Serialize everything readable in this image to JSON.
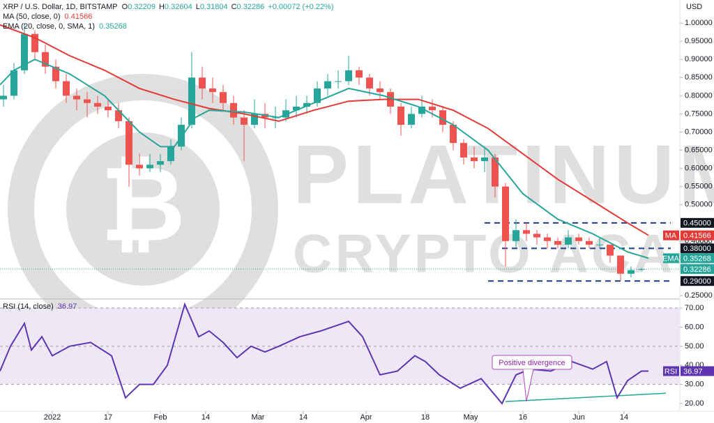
{
  "watermark": [
    "PLATINUM",
    "CRYPTO ACADEMY"
  ],
  "chart_data": [
    {
      "type": "candlestick",
      "title": "XRP / U.S. Dollar, 1D, BITSTAMP",
      "ohlc_labels": [
        "O",
        "H",
        "L",
        "C"
      ],
      "change": "+0.00072 (+0.22%)",
      "currency": "USD",
      "up_color": "#26a69a",
      "down_color": "#ef5350",
      "xlim": [
        0,
        195
      ],
      "ylim": [
        0.2425,
        1.0635
      ],
      "yticks": [
        {
          "value": 1,
          "label": "1.00000"
        },
        {
          "value": 0.95,
          "label": "0.95000"
        },
        {
          "value": 0.9,
          "label": "0.90000"
        },
        {
          "value": 0.85,
          "label": "0.85000"
        },
        {
          "value": 0.8,
          "label": "0.80000"
        },
        {
          "value": 0.75,
          "label": "0.75000"
        },
        {
          "value": 0.7,
          "label": "0.70000"
        },
        {
          "value": 0.65,
          "label": "0.65000"
        },
        {
          "value": 0.6,
          "label": "0.60000"
        },
        {
          "value": 0.55,
          "label": "0.55000"
        },
        {
          "value": 0.5,
          "label": "0.50000"
        },
        {
          "value": 0.4,
          "label": "0.40000"
        },
        {
          "value": 0.35,
          "label": "0.35000"
        },
        {
          "value": 0.25,
          "label": "0.25000"
        }
      ],
      "x": [
        1,
        4,
        7,
        10,
        13,
        16,
        19,
        22,
        25,
        28,
        31,
        34,
        37,
        40,
        43,
        46,
        49,
        52,
        55,
        58,
        61,
        64,
        67,
        70,
        73,
        76,
        79,
        82,
        85,
        88,
        91,
        94,
        97,
        100,
        103,
        106,
        109,
        112,
        115,
        118,
        121,
        124,
        127,
        130,
        133,
        136,
        139,
        142,
        145,
        148,
        151,
        154,
        157,
        160,
        163,
        166,
        169,
        172,
        175,
        178,
        181,
        184
      ],
      "candles": [
        [
          0.79,
          0.83,
          0.77,
          0.8
        ],
        [
          0.8,
          0.89,
          0.79,
          0.87
        ],
        [
          0.87,
          1.0,
          0.86,
          0.97
        ],
        [
          0.97,
          0.98,
          0.9,
          0.92
        ],
        [
          0.92,
          0.94,
          0.86,
          0.88
        ],
        [
          0.88,
          0.9,
          0.82,
          0.84
        ],
        [
          0.84,
          0.86,
          0.78,
          0.8
        ],
        [
          0.8,
          0.82,
          0.76,
          0.79
        ],
        [
          0.79,
          0.81,
          0.74,
          0.78
        ],
        [
          0.78,
          0.8,
          0.75,
          0.77
        ],
        [
          0.77,
          0.79,
          0.74,
          0.76
        ],
        [
          0.76,
          0.78,
          0.71,
          0.73
        ],
        [
          0.73,
          0.74,
          0.55,
          0.61
        ],
        [
          0.61,
          0.64,
          0.58,
          0.6
        ],
        [
          0.6,
          0.64,
          0.59,
          0.61
        ],
        [
          0.61,
          0.64,
          0.59,
          0.62
        ],
        [
          0.62,
          0.68,
          0.61,
          0.66
        ],
        [
          0.66,
          0.74,
          0.65,
          0.72
        ],
        [
          0.72,
          0.92,
          0.71,
          0.85
        ],
        [
          0.85,
          0.88,
          0.79,
          0.82
        ],
        [
          0.82,
          0.85,
          0.78,
          0.81
        ],
        [
          0.81,
          0.83,
          0.76,
          0.78
        ],
        [
          0.78,
          0.8,
          0.72,
          0.74
        ],
        [
          0.74,
          0.76,
          0.62,
          0.72
        ],
        [
          0.72,
          0.79,
          0.71,
          0.75
        ],
        [
          0.75,
          0.78,
          0.71,
          0.74
        ],
        [
          0.74,
          0.77,
          0.71,
          0.74
        ],
        [
          0.74,
          0.79,
          0.73,
          0.76
        ],
        [
          0.76,
          0.8,
          0.74,
          0.77
        ],
        [
          0.77,
          0.8,
          0.75,
          0.78
        ],
        [
          0.78,
          0.84,
          0.77,
          0.82
        ],
        [
          0.82,
          0.86,
          0.8,
          0.84
        ],
        [
          0.84,
          0.87,
          0.82,
          0.84
        ],
        [
          0.84,
          0.91,
          0.83,
          0.87
        ],
        [
          0.87,
          0.88,
          0.83,
          0.85
        ],
        [
          0.85,
          0.86,
          0.8,
          0.82
        ],
        [
          0.82,
          0.84,
          0.79,
          0.81
        ],
        [
          0.81,
          0.82,
          0.75,
          0.77
        ],
        [
          0.77,
          0.78,
          0.69,
          0.72
        ],
        [
          0.72,
          0.77,
          0.71,
          0.75
        ],
        [
          0.75,
          0.8,
          0.74,
          0.77
        ],
        [
          0.77,
          0.79,
          0.74,
          0.76
        ],
        [
          0.76,
          0.77,
          0.7,
          0.72
        ],
        [
          0.72,
          0.73,
          0.65,
          0.67
        ],
        [
          0.67,
          0.68,
          0.61,
          0.63
        ],
        [
          0.63,
          0.66,
          0.6,
          0.62
        ],
        [
          0.62,
          0.66,
          0.59,
          0.63
        ],
        [
          0.63,
          0.64,
          0.52,
          0.55
        ],
        [
          0.55,
          0.56,
          0.33,
          0.4
        ],
        [
          0.4,
          0.46,
          0.38,
          0.43
        ],
        [
          0.43,
          0.45,
          0.4,
          0.42
        ],
        [
          0.42,
          0.43,
          0.39,
          0.41
        ],
        [
          0.41,
          0.42,
          0.38,
          0.4
        ],
        [
          0.4,
          0.41,
          0.38,
          0.39
        ],
        [
          0.39,
          0.43,
          0.38,
          0.41
        ],
        [
          0.41,
          0.42,
          0.39,
          0.4
        ],
        [
          0.4,
          0.41,
          0.38,
          0.39
        ],
        [
          0.39,
          0.41,
          0.38,
          0.39
        ],
        [
          0.39,
          0.39,
          0.34,
          0.36
        ],
        [
          0.36,
          0.36,
          0.29,
          0.31
        ],
        [
          0.31,
          0.33,
          0.3,
          0.32
        ],
        [
          0.32209,
          0.32604,
          0.31804,
          0.32286
        ]
      ],
      "series": [
        {
          "name": "MA (50, close, 0)",
          "tag": "MA",
          "color": "#e53935",
          "x": [
            0,
            10,
            20,
            30,
            40,
            50,
            60,
            70,
            80,
            90,
            100,
            110,
            120,
            130,
            140,
            150,
            160,
            170,
            180,
            186
          ],
          "values": [
            0.995,
            0.96,
            0.91,
            0.87,
            0.82,
            0.79,
            0.765,
            0.75,
            0.73,
            0.76,
            0.785,
            0.79,
            0.79,
            0.76,
            0.71,
            0.64,
            0.57,
            0.51,
            0.45,
            0.41566
          ]
        },
        {
          "name": "EMA (20, close, 0, SMA, 1)",
          "tag": "EMA",
          "color": "#26a69a",
          "x": [
            0,
            4,
            10,
            20,
            30,
            40,
            46,
            50,
            56,
            60,
            70,
            80,
            90,
            100,
            110,
            120,
            130,
            140,
            150,
            160,
            170,
            180,
            186
          ],
          "values": [
            0.83,
            0.87,
            0.9,
            0.86,
            0.8,
            0.7,
            0.66,
            0.66,
            0.74,
            0.76,
            0.755,
            0.74,
            0.78,
            0.82,
            0.8,
            0.77,
            0.72,
            0.65,
            0.53,
            0.46,
            0.42,
            0.37,
            0.35268
          ]
        }
      ],
      "levels": [
        {
          "value": 0.45,
          "label": "0.45000"
        },
        {
          "value": 0.38,
          "label": "0.38000"
        },
        {
          "value": 0.29,
          "label": "0.29000"
        }
      ]
    },
    {
      "type": "line",
      "title": "RSI (14, close)",
      "xlim": [
        0,
        195
      ],
      "ylim": [
        16,
        74.4
      ],
      "yticks": [
        {
          "value": 70,
          "label": "70.00"
        },
        {
          "value": 60,
          "label": "60.00"
        },
        {
          "value": 50,
          "label": "50.00"
        },
        {
          "value": 40,
          "label": "40.00"
        },
        {
          "value": 30,
          "label": "30.00"
        },
        {
          "value": 20,
          "label": "20.00"
        }
      ],
      "band": [
        30,
        70
      ],
      "hlines": [
        70,
        50,
        30
      ],
      "xticks": [
        {
          "value": 15,
          "label": "2022"
        },
        {
          "value": 31,
          "label": "17"
        },
        {
          "value": 46,
          "label": "Feb"
        },
        {
          "value": 59,
          "label": "14"
        },
        {
          "value": 74,
          "label": "Mar"
        },
        {
          "value": 87,
          "label": "14"
        },
        {
          "value": 105,
          "label": "Apr"
        },
        {
          "value": 122,
          "label": "18"
        },
        {
          "value": 135,
          "label": "May"
        },
        {
          "value": 150,
          "label": "16"
        },
        {
          "value": 166,
          "label": "Jun"
        },
        {
          "value": 179,
          "label": "14"
        }
      ],
      "series": [
        {
          "name": "RSI",
          "tag": "RSI",
          "color": "#5e35b1",
          "x": [
            0,
            3,
            7,
            9,
            12,
            15,
            20,
            26,
            32,
            36,
            40,
            44,
            48,
            53,
            57,
            60,
            64,
            68,
            72,
            76,
            80,
            86,
            92,
            100,
            104,
            109,
            114,
            119,
            122,
            126,
            132,
            138,
            144,
            148,
            152,
            158,
            164,
            170,
            174,
            177,
            180,
            184,
            186
          ],
          "values": [
            37,
            50,
            62,
            48,
            55,
            45,
            50,
            52,
            45,
            23,
            30,
            30,
            40,
            72,
            55,
            58,
            52,
            44,
            50,
            47,
            50,
            55,
            58,
            63,
            55,
            35,
            37,
            45,
            42,
            35,
            28,
            33,
            20,
            35,
            38,
            37,
            42,
            38,
            42,
            23,
            32,
            37,
            36.97
          ]
        }
      ],
      "trendline": {
        "x": [
          145,
          191
        ],
        "values": [
          21,
          25.4
        ],
        "color": "#26a69a"
      },
      "annotation": "Positive divergence"
    }
  ]
}
